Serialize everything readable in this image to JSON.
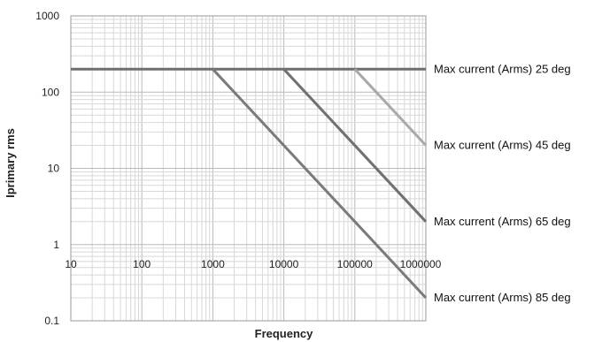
{
  "chart_data": {
    "type": "line",
    "xscale": "log",
    "yscale": "log",
    "xlim": [
      10,
      1000000
    ],
    "ylim": [
      0.1,
      1000
    ],
    "xlabel": "Frequency",
    "ylabel": "Iprimary rms",
    "grid": true,
    "x_ticks": [
      "10",
      "100",
      "1000",
      "10000",
      "100000",
      "1000000"
    ],
    "y_ticks": [
      "1000",
      "100",
      "10",
      "1",
      "0.1"
    ],
    "series": [
      {
        "name": "Max current (Arms) 25 deg",
        "color": "#6e6e6e",
        "points": [
          [
            10,
            200
          ],
          [
            1000000,
            200
          ]
        ]
      },
      {
        "name": "Max current (Arms) 45 deg",
        "color": "#a9a9a9",
        "points": [
          [
            100000,
            200
          ],
          [
            1000000,
            20
          ]
        ]
      },
      {
        "name": "Max current (Arms) 65 deg",
        "color": "#707070",
        "points": [
          [
            10000,
            200
          ],
          [
            1000000,
            2
          ]
        ]
      },
      {
        "name": "Max current (Arms) 85 deg",
        "color": "#7a7a7a",
        "points": [
          [
            1000,
            200
          ],
          [
            1000000,
            0.2
          ]
        ]
      }
    ]
  }
}
